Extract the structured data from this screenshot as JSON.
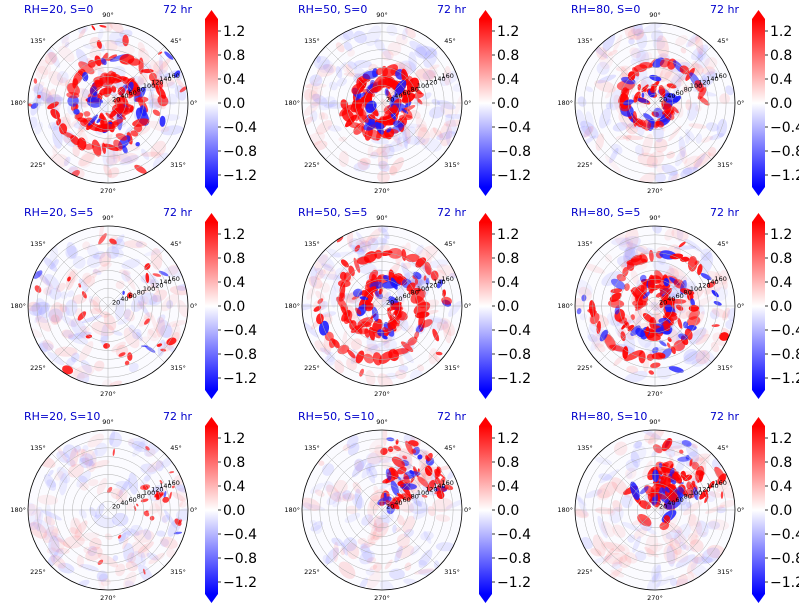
{
  "chart_data": {
    "type": "heatmap",
    "projection": "polar",
    "colormap": "bwr",
    "colorbar": {
      "ticks": [
        1.2,
        0.8,
        0.4,
        0.0,
        -0.4,
        -0.8,
        -1.2
      ],
      "tick_labels": [
        "1.2",
        "0.8",
        "0.4",
        "0.0",
        "−0.4",
        "−0.8",
        "−1.2"
      ],
      "range": [
        -1.4,
        1.4
      ],
      "extend": "both",
      "colors": {
        "min": "#0000ff",
        "mid": "#ffffff",
        "max": "#ff0000"
      }
    },
    "angular_ticks": [
      "0°",
      "45°",
      "90°",
      "135°",
      "180°",
      "225°",
      "270°",
      "315°"
    ],
    "radial_ticks": [
      "20",
      "40",
      "60",
      "80",
      "100",
      "120",
      "140",
      "160"
    ],
    "radial_label_angle_deg": 22.5,
    "radial_grid_values": [
      20,
      40,
      60,
      80,
      100,
      120,
      140,
      160
    ],
    "radial_max": 180,
    "panels": [
      {
        "title": "RH=20, S=0",
        "time": "72 hr",
        "pattern": "spiral",
        "seed": 11,
        "strength": 0.9,
        "spread": 0.45
      },
      {
        "title": "RH=50, S=0",
        "time": "72 hr",
        "pattern": "ring",
        "seed": 23,
        "strength": 0.95,
        "spread": 0.5
      },
      {
        "title": "RH=80, S=0",
        "time": "72 hr",
        "pattern": "core",
        "seed": 37,
        "strength": 1.0,
        "spread": 0.35
      },
      {
        "title": "RH=20, S=5",
        "time": "72 hr",
        "pattern": "scatter",
        "seed": 41,
        "strength": 0.8,
        "spread": 0.8
      },
      {
        "title": "RH=50, S=5",
        "time": "72 hr",
        "pattern": "spiral",
        "seed": 53,
        "strength": 0.9,
        "spread": 0.7
      },
      {
        "title": "RH=80, S=5",
        "time": "72 hr",
        "pattern": "spiral",
        "seed": 67,
        "strength": 1.0,
        "spread": 0.65
      },
      {
        "title": "RH=20, S=10",
        "time": "72 hr",
        "pattern": "sparse",
        "seed": 71,
        "strength": 0.6,
        "spread": 0.9
      },
      {
        "title": "RH=50, S=10",
        "time": "72 hr",
        "pattern": "sheared",
        "seed": 83,
        "strength": 0.95,
        "spread": 0.7
      },
      {
        "title": "RH=80, S=10",
        "time": "72 hr",
        "pattern": "sheared-core",
        "seed": 97,
        "strength": 0.95,
        "spread": 0.6
      }
    ]
  }
}
